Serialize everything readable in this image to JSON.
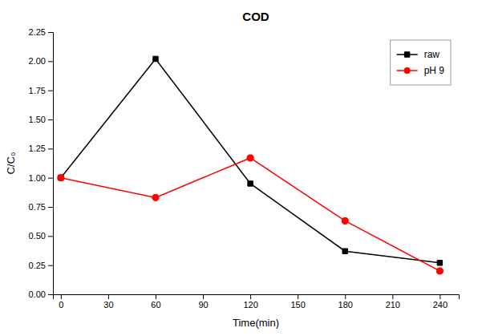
{
  "chart_data": {
    "type": "line",
    "title": "COD",
    "xlabel": "Time(min)",
    "ylabel": "C/C₀",
    "x": [
      0,
      60,
      120,
      180,
      240
    ],
    "xlim": [
      -5,
      252
    ],
    "xticks": [
      0,
      30,
      60,
      90,
      120,
      150,
      180,
      210,
      240
    ],
    "ylim": [
      0.0,
      2.25
    ],
    "yticks": [
      {
        "value": 0,
        "label": "0.00"
      },
      0.25,
      {
        "value": 0.5,
        "label": "0.50"
      },
      0.75,
      {
        "value": 1,
        "label": "1.00"
      },
      1.25,
      {
        "value": 1.5,
        "label": "1.50"
      },
      1.75,
      {
        "value": 2,
        "label": "2.00"
      },
      2.25
    ],
    "series": [
      {
        "name": "raw",
        "color": "#000000",
        "marker": "square",
        "values": [
          1.0,
          2.02,
          0.95,
          0.37,
          0.27
        ]
      },
      {
        "name": "pH 9",
        "color": "#ff0000",
        "marker": "circle",
        "values": [
          1.0,
          0.83,
          1.17,
          0.63,
          0.2
        ]
      }
    ],
    "legend": "upper right",
    "grid": false
  }
}
